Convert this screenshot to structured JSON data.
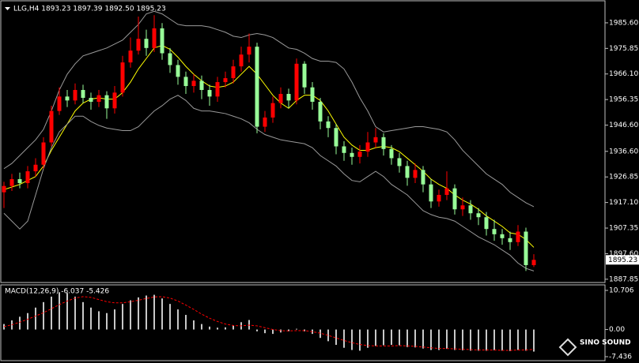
{
  "chart_data": [
    {
      "type": "candlestick",
      "title": "LLG,H4 1893.23 1897.39 1892.50 1895.23",
      "open": [
        1921.0,
        1923.4,
        1926.0,
        1924.5,
        1929.0,
        1931.5,
        1940.0,
        1952.0,
        1957.5,
        1956.0,
        1960.0,
        1957.0,
        1955.5,
        1958.0,
        1953.0,
        1959.0,
        1970.5,
        1975.0,
        1979.5,
        1976.0,
        1983.5,
        1974.0,
        1969.5,
        1965.0,
        1961.5,
        1963.5,
        1960.0,
        1957.5,
        1963.0,
        1964.5,
        1969.0,
        1973.5,
        1976.5,
        1946.0,
        1949.5,
        1955.0,
        1958.5,
        1956.0,
        1970.0,
        1961.0,
        1955.5,
        1948.0,
        1945.5,
        1938.5,
        1936.0,
        1934.5,
        1936.5,
        1940.0,
        1942.0,
        1937.5,
        1934.0,
        1931.0,
        1926.5,
        1929.5,
        1924.0,
        1917.5,
        1920.0,
        1922.5,
        1914.5,
        1916.0,
        1913.0,
        1911.5,
        1907.0,
        1905.0,
        1903.5,
        1902.0,
        1906.0,
        1893.23
      ],
      "high": [
        1925,
        1928,
        1928.5,
        1931,
        1934,
        1942,
        1954,
        1961,
        1960,
        1962.5,
        1962,
        1959,
        1960,
        1959.5,
        1961.5,
        1973,
        1980,
        1988,
        1983,
        1988.5,
        1985.5,
        1976,
        1971.5,
        1967,
        1966,
        1965.5,
        1962,
        1965,
        1967,
        1971.5,
        1976.5,
        1981.5,
        1978,
        1952,
        1957.5,
        1961,
        1960.5,
        1972,
        1971,
        1963,
        1957,
        1950,
        1947,
        1940.5,
        1938,
        1939,
        1944,
        1945.5,
        1943.5,
        1939,
        1936,
        1933,
        1932,
        1931,
        1926,
        1922,
        1929,
        1924,
        1919,
        1918,
        1915,
        1913.5,
        1910.5,
        1907,
        1906,
        1908.5,
        1907.5,
        1897.39
      ],
      "low": [
        1915,
        1921.5,
        1922.5,
        1922.5,
        1927,
        1930,
        1938.5,
        1950.5,
        1953.5,
        1954.5,
        1955,
        1952.5,
        1953.5,
        1949,
        1951,
        1957.5,
        1968.5,
        1973.5,
        1973,
        1974.5,
        1971.5,
        1966.5,
        1962,
        1958.5,
        1959,
        1956.5,
        1954,
        1955.5,
        1961,
        1962.5,
        1967,
        1970.5,
        1943.5,
        1944,
        1947.5,
        1953,
        1953,
        1954.5,
        1958.5,
        1952.5,
        1945,
        1942,
        1935.5,
        1933,
        1931.5,
        1932,
        1934.5,
        1938,
        1935,
        1931.5,
        1928.5,
        1923.5,
        1924.5,
        1921,
        1915,
        1915.5,
        1918,
        1912.5,
        1912,
        1910.5,
        1908.5,
        1904.5,
        1902.5,
        1901,
        1899,
        1900.5,
        1891,
        1892.5
      ],
      "close": [
        1923.4,
        1926.0,
        1924.5,
        1929.0,
        1931.5,
        1940.0,
        1952.0,
        1957.5,
        1956.0,
        1960.0,
        1957.0,
        1955.5,
        1958.0,
        1953.0,
        1959.0,
        1970.5,
        1975.0,
        1979.5,
        1976.0,
        1983.5,
        1974.0,
        1969.5,
        1965.0,
        1961.5,
        1963.5,
        1960.0,
        1957.5,
        1963.0,
        1964.5,
        1969.0,
        1973.5,
        1976.5,
        1946.0,
        1949.5,
        1955.0,
        1958.5,
        1956.0,
        1970.0,
        1961.0,
        1955.5,
        1948.0,
        1945.5,
        1938.5,
        1936.0,
        1934.5,
        1936.5,
        1940.0,
        1942.0,
        1937.5,
        1934.0,
        1931.0,
        1926.5,
        1929.5,
        1924.0,
        1917.5,
        1920.0,
        1922.5,
        1914.5,
        1916.0,
        1913.0,
        1911.5,
        1907.0,
        1905.0,
        1903.5,
        1902.0,
        1906.0,
        1893.23,
        1895.23
      ],
      "up_color": "#ff0000",
      "down_color": "#98fb98",
      "overlays": [
        {
          "color": "#ffff00",
          "values": [
            1922,
            1923,
            1924,
            1925.5,
            1927,
            1931,
            1937,
            1942,
            1947,
            1952,
            1955,
            1956.5,
            1957,
            1956.5,
            1956.5,
            1959,
            1963,
            1968,
            1972,
            1976,
            1977,
            1975.5,
            1972.5,
            1969,
            1966,
            1963.5,
            1961.5,
            1961,
            1961.5,
            1963,
            1966,
            1969,
            1966,
            1962,
            1958,
            1955,
            1953,
            1956,
            1958,
            1958,
            1956,
            1952,
            1947,
            1942,
            1939,
            1937,
            1937,
            1938,
            1938.5,
            1938,
            1936.5,
            1934,
            1931.5,
            1929,
            1926,
            1924,
            1922.5,
            1920,
            1918,
            1916.5,
            1914.5,
            1912,
            1910,
            1908,
            1905.5,
            1905,
            1903,
            1900
          ]
        },
        {
          "color": "#9a9a9a",
          "values": [
            1930,
            1932,
            1935,
            1938,
            1941,
            1945,
            1952,
            1960,
            1966,
            1970,
            1973,
            1974,
            1975,
            1976,
            1977.5,
            1979,
            1982,
            1985,
            1989,
            1990,
            1989,
            1987,
            1985,
            1984.5,
            1984.5,
            1984.5,
            1984,
            1983,
            1982,
            1980.5,
            1980,
            1981,
            1981.5,
            1981,
            1980,
            1978,
            1976,
            1975.5,
            1974,
            1972,
            1971,
            1971,
            1970.5,
            1968,
            1963,
            1957,
            1952,
            1946,
            1944,
            1944.5,
            1945,
            1945.5,
            1946,
            1946,
            1945.5,
            1945,
            1944,
            1941,
            1937,
            1934,
            1931,
            1928,
            1926,
            1924,
            1921,
            1919,
            1917,
            1915.5
          ]
        },
        {
          "color": "#9a9a9a",
          "values": [
            1913,
            1910,
            1907,
            1910,
            1920,
            1930,
            1938,
            1944,
            1947,
            1950,
            1950,
            1948,
            1946.5,
            1945.5,
            1945,
            1944.5,
            1944.5,
            1946,
            1949,
            1952,
            1954,
            1956.5,
            1958,
            1956,
            1953,
            1952,
            1952,
            1951.5,
            1951,
            1950,
            1949,
            1947.5,
            1945,
            1943,
            1942,
            1941,
            1940.5,
            1940,
            1939.5,
            1938,
            1935,
            1933,
            1931,
            1928,
            1925.5,
            1925,
            1927,
            1929,
            1927,
            1924,
            1922,
            1920,
            1917,
            1914,
            1912.5,
            1911.5,
            1911,
            1910,
            1908,
            1906,
            1904,
            1902.5,
            1901,
            1899,
            1897,
            1894,
            1892,
            1891
          ]
        }
      ],
      "ylim": [
        1886.6,
        1993.7
      ],
      "yticks": [
        {
          "value": 1985.6,
          "label": "1985.60"
        },
        1975.85,
        {
          "value": 1966.1,
          "label": "1966.10"
        },
        1956.35,
        {
          "value": 1946.6,
          "label": "1946.60"
        },
        {
          "value": 1936.6,
          "label": "1936.60"
        },
        1926.85,
        {
          "value": 1917.1,
          "label": "1917.10"
        },
        1907.35,
        {
          "value": 1897.6,
          "label": "1897.60"
        },
        1887.85
      ],
      "last_price": 1895.23
    },
    {
      "type": "macd",
      "title": "MACD(12,26,9) -6.037 -5.426",
      "histogram": [
        1.5,
        2.5,
        3.5,
        4.5,
        6,
        7.5,
        9,
        10.2,
        10,
        9,
        7.5,
        6,
        5,
        4.5,
        5.5,
        7,
        8,
        8.8,
        9.3,
        9.5,
        8.5,
        7,
        5.5,
        4,
        2.5,
        1.5,
        0.8,
        0.5,
        0.6,
        1.2,
        2,
        2.6,
        -0.5,
        -1,
        -1.2,
        -0.8,
        -0.5,
        0.2,
        -0.5,
        -1.2,
        -2.3,
        -3.2,
        -4.2,
        -5,
        -5.6,
        -5.8,
        -5,
        -4.5,
        -4.3,
        -4.2,
        -4.3,
        -4.8,
        -4.9,
        -5.2,
        -5.6,
        -5.6,
        -5.3,
        -5.6,
        -5.7,
        -5.8,
        -5.8,
        -5.8,
        -5.7,
        -5.8,
        -5.9,
        -5.6,
        -5.8,
        -6.037
      ],
      "signal": [
        0.8,
        1.3,
        2,
        2.8,
        3.7,
        4.6,
        5.7,
        6.8,
        7.8,
        8.6,
        9,
        8.8,
        8.2,
        7.6,
        7.3,
        7.3,
        7.6,
        8,
        8.5,
        8.9,
        9,
        8.6,
        7.8,
        6.7,
        5.5,
        4.2,
        3.1,
        2.2,
        1.5,
        1.1,
        1,
        1.2,
        1,
        0.5,
        0,
        -0.3,
        -0.4,
        -0.3,
        -0.3,
        -0.6,
        -1,
        -1.6,
        -2.3,
        -3,
        -3.6,
        -4.1,
        -4.4,
        -4.5,
        -4.5,
        -4.5,
        -4.4,
        -4.5,
        -4.6,
        -4.8,
        -5,
        -5.2,
        -5.2,
        -5.3,
        -5.4,
        -5.5,
        -5.6,
        -5.6,
        -5.6,
        -5.7,
        -5.7,
        -5.6,
        -5.6,
        -5.426
      ],
      "histogram_color": "#c8c8c8",
      "signal_color": "#ff0000",
      "ylim": [
        -8.3,
        12.0
      ],
      "yticks": [
        10.706,
        {
          "value": 0,
          "label": "0.00"
        },
        -7.436
      ]
    }
  ],
  "watermark": "SINO SOUND"
}
